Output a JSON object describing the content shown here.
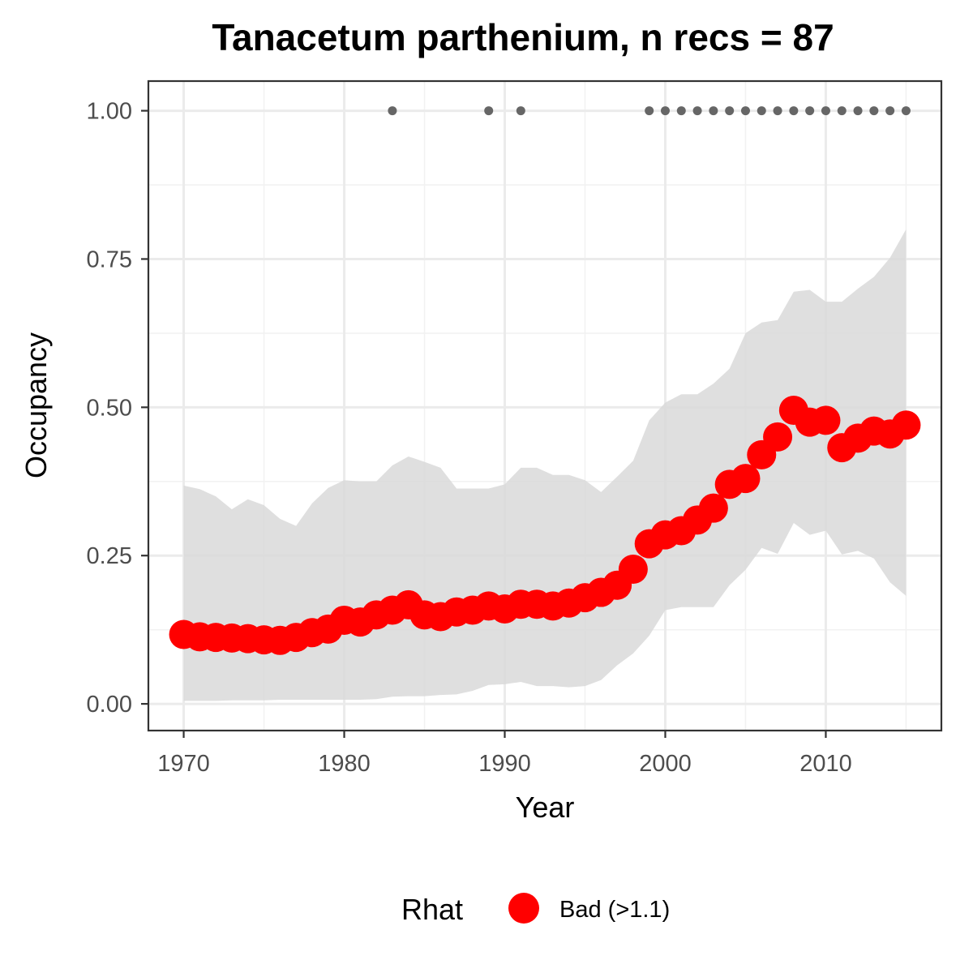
{
  "chart_data": {
    "type": "line",
    "title": "Tanacetum parthenium, n recs = 87",
    "xlabel": "Year",
    "ylabel": "Occupancy",
    "xlim": [
      1967.8,
      2017.2
    ],
    "ylim": [
      -0.045,
      1.05
    ],
    "x_ticks": [
      1970,
      1980,
      1990,
      2000,
      2010
    ],
    "x_tick_labels": [
      "1970",
      "1980",
      "1990",
      "2000",
      "2010"
    ],
    "y_ticks": [
      0,
      0.25,
      0.5,
      0.75,
      1.0
    ],
    "y_tick_labels": [
      "0.00",
      "0.25",
      "0.50",
      "0.75",
      "1.00"
    ],
    "grid": true,
    "legend": {
      "title": "Rhat",
      "position": "bottom",
      "entries": [
        {
          "label": "Bad (>1.1)",
          "color": "#ff0000"
        }
      ]
    },
    "colors": {
      "points": "#ff0000",
      "ribbon": "#d9d9d9",
      "record_points": "#666666",
      "panel_border": "#333333",
      "grid_major": "#ebebeb"
    },
    "x": [
      1970,
      1971,
      1972,
      1973,
      1974,
      1975,
      1976,
      1977,
      1978,
      1979,
      1980,
      1981,
      1982,
      1983,
      1984,
      1985,
      1986,
      1987,
      1988,
      1989,
      1990,
      1991,
      1992,
      1993,
      1994,
      1995,
      1996,
      1997,
      1998,
      1999,
      2000,
      2001,
      2002,
      2003,
      2004,
      2005,
      2006,
      2007,
      2008,
      2009,
      2010,
      2011,
      2012,
      2013,
      2014,
      2015
    ],
    "series": [
      {
        "type": "points",
        "values": [
          0.117,
          0.113,
          0.112,
          0.111,
          0.11,
          0.108,
          0.107,
          0.112,
          0.12,
          0.126,
          0.141,
          0.138,
          0.15,
          0.158,
          0.167,
          0.15,
          0.147,
          0.155,
          0.158,
          0.165,
          0.16,
          0.168,
          0.168,
          0.165,
          0.17,
          0.179,
          0.188,
          0.2,
          0.227,
          0.27,
          0.285,
          0.292,
          0.31,
          0.33,
          0.37,
          0.38,
          0.42,
          0.45,
          0.495,
          0.475,
          0.478,
          0.432,
          0.448,
          0.46,
          0.455,
          0.47
        ]
      },
      {
        "type": "ribbon",
        "lower": [
          0.005,
          0.005,
          0.005,
          0.006,
          0.006,
          0.006,
          0.007,
          0.007,
          0.007,
          0.007,
          0.007,
          0.007,
          0.008,
          0.012,
          0.013,
          0.013,
          0.015,
          0.016,
          0.022,
          0.032,
          0.033,
          0.037,
          0.03,
          0.03,
          0.028,
          0.03,
          0.04,
          0.065,
          0.085,
          0.115,
          0.158,
          0.163,
          0.163,
          0.163,
          0.2,
          0.226,
          0.263,
          0.253,
          0.305,
          0.285,
          0.292,
          0.252,
          0.258,
          0.245,
          0.205,
          0.182
        ],
        "upper": [
          0.368,
          0.362,
          0.35,
          0.328,
          0.345,
          0.335,
          0.312,
          0.3,
          0.338,
          0.364,
          0.377,
          0.375,
          0.375,
          0.402,
          0.417,
          0.408,
          0.398,
          0.363,
          0.363,
          0.363,
          0.37,
          0.398,
          0.398,
          0.386,
          0.386,
          0.377,
          0.357,
          0.383,
          0.41,
          0.478,
          0.508,
          0.522,
          0.522,
          0.54,
          0.565,
          0.625,
          0.643,
          0.647,
          0.695,
          0.698,
          0.678,
          0.678,
          0.7,
          0.72,
          0.752,
          0.8
        ]
      }
    ],
    "record_years": [
      1983,
      1989,
      1991,
      1999,
      2000,
      2001,
      2002,
      2003,
      2004,
      2005,
      2006,
      2007,
      2008,
      2009,
      2010,
      2011,
      2012,
      2013,
      2014,
      2015
    ],
    "record_value": 1.0
  }
}
